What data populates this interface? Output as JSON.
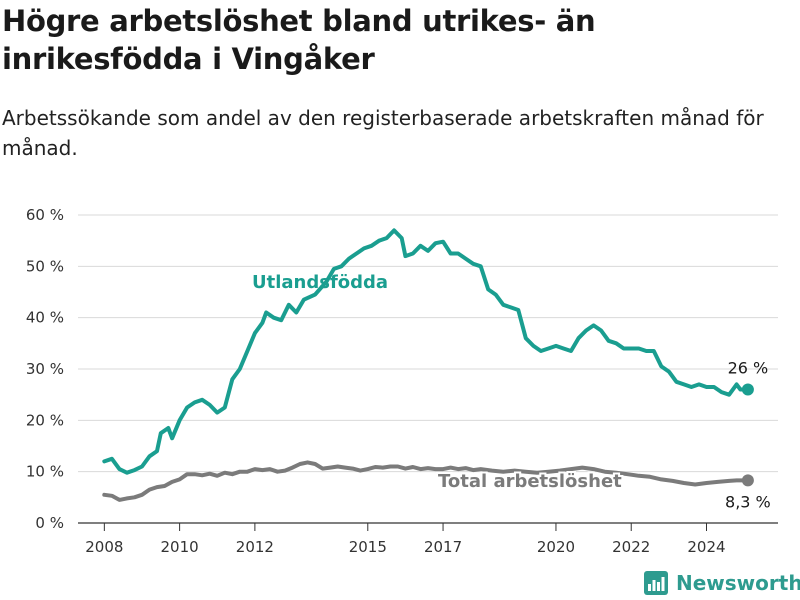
{
  "header": {
    "title": "Högre arbetslöshet bland utrikes- än inrikesfödda i Vingåker",
    "subtitle": "Arbetssökande som andel av den registerbaserade arbetskraften månad för månad."
  },
  "brand": {
    "name": "Newsworthy",
    "icon": "bar-chart-logo-icon",
    "color": "#2e9b8f"
  },
  "chart_data": {
    "type": "line",
    "title": "Högre arbetslöshet bland utrikes- än inrikesfödda i Vingåker",
    "subtitle": "Arbetssökande som andel av den registerbaserade arbetskraften månad för månad.",
    "xlabel": "",
    "ylabel": "",
    "xlim": [
      2007.3,
      2025.9
    ],
    "ylim": [
      0,
      60
    ],
    "grid": true,
    "x_ticks": [
      2008,
      2010,
      2012,
      2015,
      2017,
      2020,
      2022,
      2024
    ],
    "x_tick_labels": [
      "2008",
      "2010",
      "2012",
      "2015",
      "2017",
      "2020",
      "2022",
      "2024"
    ],
    "y_ticks": [
      0,
      10,
      20,
      30,
      40,
      50,
      60
    ],
    "y_tick_labels": [
      "0 %",
      "10 %",
      "20 %",
      "30 %",
      "40 %",
      "50 %",
      "60 %"
    ],
    "series": [
      {
        "name": "Utlandsfödda",
        "color": "#1a9e90",
        "end_label": "26 %",
        "points": [
          [
            2008.0,
            12
          ],
          [
            2008.2,
            12.5
          ],
          [
            2008.4,
            10.5
          ],
          [
            2008.6,
            9.8
          ],
          [
            2008.8,
            10.3
          ],
          [
            2009.0,
            11
          ],
          [
            2009.2,
            13
          ],
          [
            2009.4,
            14
          ],
          [
            2009.5,
            17.5
          ],
          [
            2009.7,
            18.5
          ],
          [
            2009.8,
            16.5
          ],
          [
            2010.0,
            20
          ],
          [
            2010.2,
            22.5
          ],
          [
            2010.4,
            23.5
          ],
          [
            2010.6,
            24
          ],
          [
            2010.8,
            23
          ],
          [
            2011.0,
            21.5
          ],
          [
            2011.2,
            22.5
          ],
          [
            2011.4,
            28
          ],
          [
            2011.6,
            30
          ],
          [
            2011.8,
            33.5
          ],
          [
            2012.0,
            37
          ],
          [
            2012.2,
            39
          ],
          [
            2012.3,
            41
          ],
          [
            2012.5,
            40
          ],
          [
            2012.7,
            39.5
          ],
          [
            2012.9,
            42.5
          ],
          [
            2013.1,
            41
          ],
          [
            2013.3,
            43.5
          ],
          [
            2013.6,
            44.5
          ],
          [
            2013.9,
            47
          ],
          [
            2014.1,
            49.5
          ],
          [
            2014.3,
            50
          ],
          [
            2014.5,
            51.5
          ],
          [
            2014.7,
            52.5
          ],
          [
            2014.9,
            53.5
          ],
          [
            2015.1,
            54
          ],
          [
            2015.3,
            55
          ],
          [
            2015.5,
            55.5
          ],
          [
            2015.7,
            57
          ],
          [
            2015.9,
            55.5
          ],
          [
            2016.0,
            52
          ],
          [
            2016.2,
            52.5
          ],
          [
            2016.4,
            54
          ],
          [
            2016.6,
            53
          ],
          [
            2016.8,
            54.5
          ],
          [
            2017.0,
            54.8
          ],
          [
            2017.2,
            52.5
          ],
          [
            2017.4,
            52.5
          ],
          [
            2017.6,
            51.5
          ],
          [
            2017.8,
            50.5
          ],
          [
            2018.0,
            50
          ],
          [
            2018.2,
            45.5
          ],
          [
            2018.4,
            44.5
          ],
          [
            2018.6,
            42.5
          ],
          [
            2018.8,
            42
          ],
          [
            2019.0,
            41.5
          ],
          [
            2019.2,
            36
          ],
          [
            2019.4,
            34.5
          ],
          [
            2019.6,
            33.5
          ],
          [
            2019.8,
            34
          ],
          [
            2020.0,
            34.5
          ],
          [
            2020.2,
            34
          ],
          [
            2020.4,
            33.5
          ],
          [
            2020.6,
            36
          ],
          [
            2020.8,
            37.5
          ],
          [
            2021.0,
            38.5
          ],
          [
            2021.2,
            37.5
          ],
          [
            2021.4,
            35.5
          ],
          [
            2021.6,
            35
          ],
          [
            2021.8,
            34
          ],
          [
            2022.0,
            34
          ],
          [
            2022.2,
            34
          ],
          [
            2022.4,
            33.5
          ],
          [
            2022.6,
            33.5
          ],
          [
            2022.8,
            30.5
          ],
          [
            2023.0,
            29.5
          ],
          [
            2023.2,
            27.5
          ],
          [
            2023.4,
            27
          ],
          [
            2023.6,
            26.5
          ],
          [
            2023.8,
            27
          ],
          [
            2024.0,
            26.5
          ],
          [
            2024.2,
            26.5
          ],
          [
            2024.4,
            25.5
          ],
          [
            2024.6,
            25
          ],
          [
            2024.8,
            27
          ],
          [
            2024.9,
            26
          ],
          [
            2025.1,
            26
          ]
        ]
      },
      {
        "name": "Total arbetslöshet",
        "color": "#7b7b7b",
        "end_label": "8,3 %",
        "points": [
          [
            2008.0,
            5.5
          ],
          [
            2008.2,
            5.3
          ],
          [
            2008.4,
            4.5
          ],
          [
            2008.6,
            4.8
          ],
          [
            2008.8,
            5
          ],
          [
            2009.0,
            5.5
          ],
          [
            2009.2,
            6.5
          ],
          [
            2009.4,
            7
          ],
          [
            2009.6,
            7.2
          ],
          [
            2009.8,
            8
          ],
          [
            2010.0,
            8.5
          ],
          [
            2010.2,
            9.5
          ],
          [
            2010.4,
            9.5
          ],
          [
            2010.6,
            9.3
          ],
          [
            2010.8,
            9.6
          ],
          [
            2011.0,
            9.2
          ],
          [
            2011.2,
            9.8
          ],
          [
            2011.4,
            9.5
          ],
          [
            2011.6,
            10
          ],
          [
            2011.8,
            10
          ],
          [
            2012.0,
            10.5
          ],
          [
            2012.2,
            10.3
          ],
          [
            2012.4,
            10.5
          ],
          [
            2012.6,
            10
          ],
          [
            2012.8,
            10.2
          ],
          [
            2013.0,
            10.8
          ],
          [
            2013.2,
            11.5
          ],
          [
            2013.4,
            11.8
          ],
          [
            2013.6,
            11.5
          ],
          [
            2013.8,
            10.6
          ],
          [
            2014.0,
            10.8
          ],
          [
            2014.2,
            11
          ],
          [
            2014.4,
            10.8
          ],
          [
            2014.6,
            10.6
          ],
          [
            2014.8,
            10.2
          ],
          [
            2015.0,
            10.5
          ],
          [
            2015.2,
            10.9
          ],
          [
            2015.4,
            10.8
          ],
          [
            2015.6,
            11
          ],
          [
            2015.8,
            11
          ],
          [
            2016.0,
            10.6
          ],
          [
            2016.2,
            10.9
          ],
          [
            2016.4,
            10.5
          ],
          [
            2016.6,
            10.7
          ],
          [
            2016.8,
            10.5
          ],
          [
            2017.0,
            10.5
          ],
          [
            2017.2,
            10.8
          ],
          [
            2017.4,
            10.5
          ],
          [
            2017.6,
            10.7
          ],
          [
            2017.8,
            10.3
          ],
          [
            2018.0,
            10.5
          ],
          [
            2018.3,
            10.2
          ],
          [
            2018.6,
            10
          ],
          [
            2018.9,
            10.2
          ],
          [
            2019.2,
            10
          ],
          [
            2019.5,
            9.8
          ],
          [
            2019.8,
            10
          ],
          [
            2020.1,
            10.2
          ],
          [
            2020.4,
            10.5
          ],
          [
            2020.7,
            10.8
          ],
          [
            2021.0,
            10.5
          ],
          [
            2021.3,
            10
          ],
          [
            2021.6,
            9.8
          ],
          [
            2021.9,
            9.5
          ],
          [
            2022.2,
            9.2
          ],
          [
            2022.5,
            9
          ],
          [
            2022.8,
            8.5
          ],
          [
            2023.1,
            8.2
          ],
          [
            2023.4,
            7.8
          ],
          [
            2023.7,
            7.5
          ],
          [
            2024.0,
            7.8
          ],
          [
            2024.3,
            8
          ],
          [
            2024.6,
            8.2
          ],
          [
            2024.8,
            8.3
          ],
          [
            2025.1,
            8.3
          ]
        ]
      }
    ]
  }
}
